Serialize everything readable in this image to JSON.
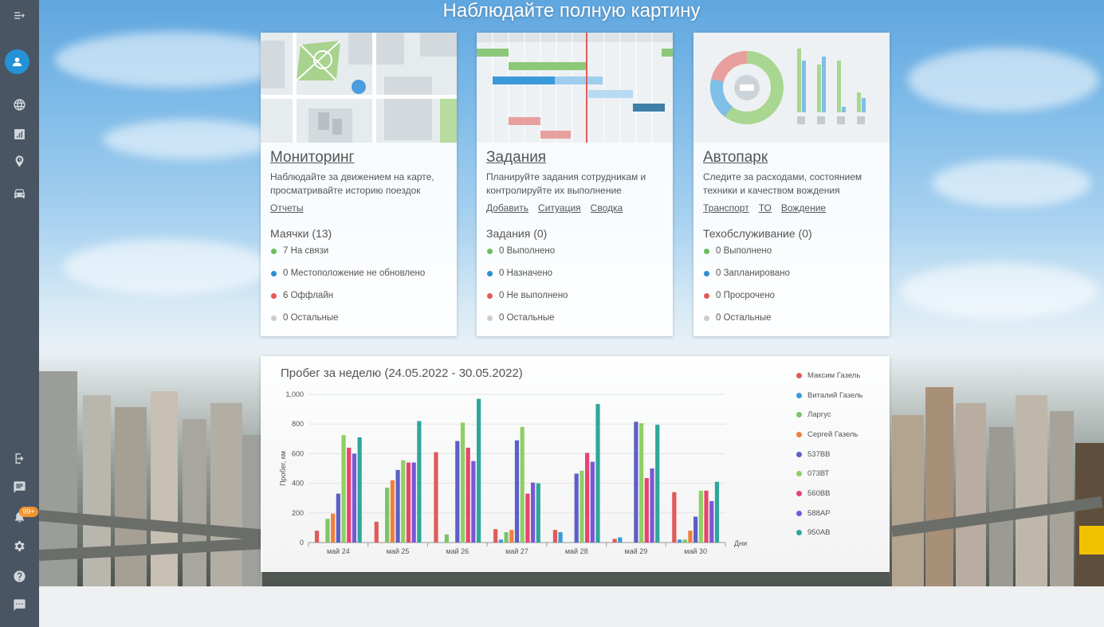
{
  "hero": {
    "title": "Наблюдайте полную картину"
  },
  "sidebar": {
    "notifications_badge": "99+"
  },
  "cards": [
    {
      "title": "Мониторинг",
      "description": "Наблюдайте за движением на карте, просматривайте историю поездок",
      "links": [
        "Отчеты"
      ],
      "subtitle": "Маячки (13)",
      "stats": [
        {
          "label": "7 На связи",
          "color": "#6cbf5c"
        },
        {
          "label": "0 Местоположение не обновлено",
          "color": "#2f8fd0"
        },
        {
          "label": "6 Оффлайн",
          "color": "#e05a5a"
        },
        {
          "label": "0 Остальные",
          "color": "#cccccc"
        }
      ]
    },
    {
      "title": "Задания",
      "description": "Планируйте задания сотрудникам и контролируйте их выполнение",
      "links": [
        "Добавить",
        "Ситуация",
        "Сводка"
      ],
      "subtitle": "Задания (0)",
      "stats": [
        {
          "label": "0 Выполнено",
          "color": "#6cbf5c"
        },
        {
          "label": "0 Назначено",
          "color": "#2f8fd0"
        },
        {
          "label": "0 Не выполнено",
          "color": "#e05a5a"
        },
        {
          "label": "0 Остальные",
          "color": "#cccccc"
        }
      ]
    },
    {
      "title": "Автопарк",
      "description": "Следите за расходами, состоянием техники и качеством вождения",
      "links": [
        "Транспорт",
        "ТО",
        "Вождение"
      ],
      "subtitle": "Техобслуживание (0)",
      "stats": [
        {
          "label": "0 Выполнено",
          "color": "#6cbf5c"
        },
        {
          "label": "0 Запланировано",
          "color": "#2f8fd0"
        },
        {
          "label": "0 Просрочено",
          "color": "#e05a5a"
        },
        {
          "label": "0 Остальные",
          "color": "#cccccc"
        }
      ]
    }
  ],
  "chart_data": {
    "type": "bar",
    "title": "Пробег за неделю (24.05.2022 - 30.05.2022)",
    "xlabel": "Дни",
    "ylabel": "Пробег, км",
    "ylim": [
      0,
      1000
    ],
    "yticks": [
      "0",
      "200",
      "400",
      "600",
      "800",
      "1,000"
    ],
    "categories": [
      "май 24",
      "май 25",
      "май 26",
      "май 27",
      "май 28",
      "май 29",
      "май 30"
    ],
    "grid": true,
    "legend_position": "right",
    "series": [
      {
        "name": "Максим Газель",
        "color": "#e05a5a",
        "values": [
          80,
          140,
          610,
          90,
          85,
          25,
          340
        ]
      },
      {
        "name": "Виталий Газель",
        "color": "#3a9ad9",
        "values": [
          0,
          0,
          0,
          20,
          70,
          35,
          20
        ]
      },
      {
        "name": "Ларгус",
        "color": "#7cc36a",
        "values": [
          160,
          370,
          55,
          70,
          0,
          0,
          20
        ]
      },
      {
        "name": "Сергей Газель",
        "color": "#f07f3c",
        "values": [
          195,
          420,
          0,
          85,
          0,
          0,
          80
        ]
      },
      {
        "name": "537ВВ",
        "color": "#5b5fc7",
        "values": [
          330,
          490,
          685,
          690,
          465,
          815,
          175
        ]
      },
      {
        "name": "073ВТ",
        "color": "#8fcf63",
        "values": [
          725,
          555,
          810,
          780,
          485,
          805,
          350
        ]
      },
      {
        "name": "560ВВ",
        "color": "#e8436e",
        "values": [
          640,
          540,
          640,
          330,
          605,
          435,
          350
        ]
      },
      {
        "name": "588АР",
        "color": "#7a56d6",
        "values": [
          600,
          540,
          550,
          405,
          545,
          500,
          280
        ]
      },
      {
        "name": "950АВ",
        "color": "#2ea79b",
        "values": [
          710,
          820,
          970,
          400,
          935,
          795,
          410
        ]
      }
    ]
  }
}
